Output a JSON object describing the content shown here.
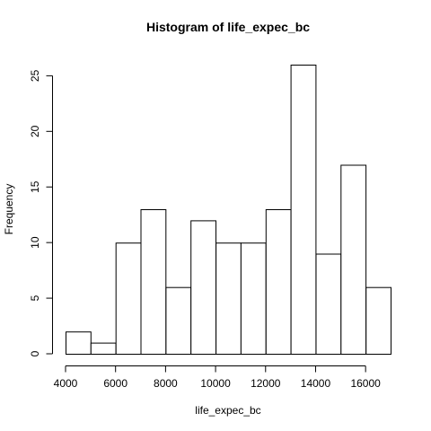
{
  "chart_data": {
    "type": "bar",
    "title": "Histogram of life_expec_bc",
    "xlabel": "life_expec_bc",
    "ylabel": "Frequency",
    "bins": [
      {
        "start": 4000,
        "end": 5000,
        "count": 2
      },
      {
        "start": 5000,
        "end": 6000,
        "count": 1
      },
      {
        "start": 6000,
        "end": 7000,
        "count": 10
      },
      {
        "start": 7000,
        "end": 8000,
        "count": 13
      },
      {
        "start": 8000,
        "end": 9000,
        "count": 6
      },
      {
        "start": 9000,
        "end": 10000,
        "count": 12
      },
      {
        "start": 10000,
        "end": 11000,
        "count": 10
      },
      {
        "start": 11000,
        "end": 12000,
        "count": 10
      },
      {
        "start": 12000,
        "end": 13000,
        "count": 13
      },
      {
        "start": 13000,
        "end": 14000,
        "count": 26
      },
      {
        "start": 14000,
        "end": 15000,
        "count": 9
      },
      {
        "start": 15000,
        "end": 16000,
        "count": 17
      },
      {
        "start": 16000,
        "end": 17000,
        "count": 6
      }
    ],
    "xlim": [
      4000,
      17000
    ],
    "ylim": [
      0,
      26
    ],
    "xticks": [
      4000,
      6000,
      8000,
      10000,
      12000,
      14000,
      16000
    ],
    "yticks": [
      0,
      5,
      10,
      15,
      20,
      25
    ],
    "grid": false,
    "colors": {
      "bar_fill": "#ffffff",
      "bar_stroke": "#000000"
    }
  }
}
